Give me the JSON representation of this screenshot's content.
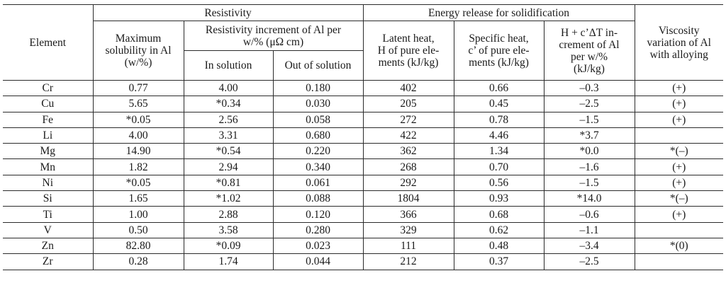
{
  "headers": {
    "element": "Element",
    "resistivity_group": "Resistivity",
    "energy_group": "Energy release for solidification",
    "max_solubility": [
      "Maximum",
      "solubility in Al",
      "(w/%)"
    ],
    "resistivity_increment": [
      "Resistivity increment of Al per",
      "w/% (μΩ cm)"
    ],
    "in_solution": "In solution",
    "out_of_solution": "Out of solution",
    "latent_heat": [
      "Latent heat,",
      "H of pure ele-",
      "ments (kJ/kg)"
    ],
    "specific_heat": [
      "Specific heat,",
      "c’ of pure ele-",
      "ments (kJ/kg)"
    ],
    "h_increment": [
      "H + c’ΔT in-",
      "crement of Al",
      "per w/%",
      "(kJ/kg)"
    ],
    "viscosity": [
      "Viscosity",
      "variation of Al",
      "with alloying"
    ]
  },
  "rows": [
    {
      "element": "Cr",
      "max_sol": "0.77",
      "res_in": "4.00",
      "res_out": "0.180",
      "latent": "402",
      "specific": "0.66",
      "h_inc": "–0.3",
      "viscosity": "(+)"
    },
    {
      "element": "Cu",
      "max_sol": "5.65",
      "res_in": "*0.34",
      "res_out": "0.030",
      "latent": "205",
      "specific": "0.45",
      "h_inc": "–2.5",
      "viscosity": "(+)"
    },
    {
      "element": "Fe",
      "max_sol": "*0.05",
      "res_in": "2.56",
      "res_out": "0.058",
      "latent": "272",
      "specific": "0.78",
      "h_inc": "–1.5",
      "viscosity": "(+)"
    },
    {
      "element": "Li",
      "max_sol": "4.00",
      "res_in": "3.31",
      "res_out": "0.680",
      "latent": "422",
      "specific": "4.46",
      "h_inc": "*3.7",
      "viscosity": ""
    },
    {
      "element": "Mg",
      "max_sol": "14.90",
      "res_in": "*0.54",
      "res_out": "0.220",
      "latent": "362",
      "specific": "1.34",
      "h_inc": "*0.0",
      "viscosity": "*(–)"
    },
    {
      "element": "Mn",
      "max_sol": "1.82",
      "res_in": "2.94",
      "res_out": "0.340",
      "latent": "268",
      "specific": "0.70",
      "h_inc": "–1.6",
      "viscosity": "(+)"
    },
    {
      "element": "Ni",
      "max_sol": "*0.05",
      "res_in": "*0.81",
      "res_out": "0.061",
      "latent": "292",
      "specific": "0.56",
      "h_inc": "–1.5",
      "viscosity": "(+)"
    },
    {
      "element": "Si",
      "max_sol": "1.65",
      "res_in": "*1.02",
      "res_out": "0.088",
      "latent": "1804",
      "specific": "0.93",
      "h_inc": "*14.0",
      "viscosity": "*(–)"
    },
    {
      "element": "Ti",
      "max_sol": "1.00",
      "res_in": "2.88",
      "res_out": "0.120",
      "latent": "366",
      "specific": "0.68",
      "h_inc": "–0.6",
      "viscosity": "(+)"
    },
    {
      "element": "V",
      "max_sol": "0.50",
      "res_in": "3.58",
      "res_out": "0.280",
      "latent": "329",
      "specific": "0.62",
      "h_inc": "–1.1",
      "viscosity": ""
    },
    {
      "element": "Zn",
      "max_sol": "82.80",
      "res_in": "*0.09",
      "res_out": "0.023",
      "latent": "111",
      "specific": "0.48",
      "h_inc": "–3.4",
      "viscosity": "*(0)"
    },
    {
      "element": "Zr",
      "max_sol": "0.28",
      "res_in": "1.74",
      "res_out": "0.044",
      "latent": "212",
      "specific": "0.37",
      "h_inc": "–2.5",
      "viscosity": ""
    }
  ]
}
